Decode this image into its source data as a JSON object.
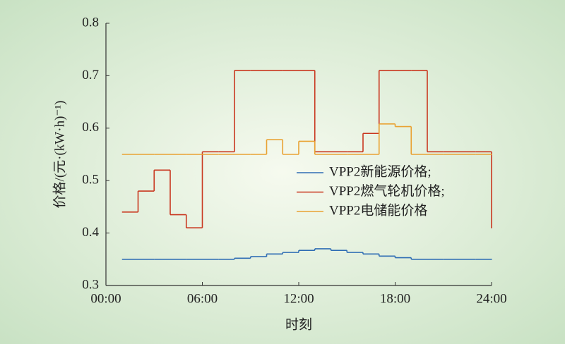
{
  "chart_data": {
    "type": "step-line",
    "x_label": "时刻",
    "y_label": "价格/(元·(kW·h)⁻¹)",
    "x": [
      1,
      2,
      3,
      4,
      5,
      6,
      7,
      8,
      9,
      10,
      11,
      12,
      13,
      14,
      15,
      16,
      17,
      18,
      19,
      20,
      21,
      22,
      23,
      24
    ],
    "series": [
      {
        "name": "VPP2新能源价格;",
        "color": "#2f6db4",
        "values": [
          0.35,
          0.35,
          0.35,
          0.35,
          0.35,
          0.35,
          0.35,
          0.352,
          0.355,
          0.36,
          0.363,
          0.367,
          0.37,
          0.367,
          0.363,
          0.36,
          0.356,
          0.353,
          0.35,
          0.35,
          0.35,
          0.35,
          0.35,
          0.35
        ]
      },
      {
        "name": "VPP2燃气轮机价格;",
        "color": "#c9371f",
        "values": [
          0.44,
          0.48,
          0.52,
          0.435,
          0.41,
          0.555,
          0.555,
          0.71,
          0.71,
          0.71,
          0.71,
          0.71,
          0.555,
          0.555,
          0.555,
          0.59,
          0.71,
          0.71,
          0.71,
          0.555,
          0.555,
          0.555,
          0.555,
          0.41
        ]
      },
      {
        "name": "VPP2电储能价格",
        "color": "#e9a233",
        "values": [
          0.55,
          0.55,
          0.55,
          0.55,
          0.55,
          0.55,
          0.55,
          0.55,
          0.55,
          0.578,
          0.55,
          0.575,
          0.55,
          0.55,
          0.55,
          0.55,
          0.608,
          0.603,
          0.55,
          0.55,
          0.55,
          0.55,
          0.55,
          0.55
        ]
      }
    ],
    "xlim": [
      0,
      24
    ],
    "xticks": [
      {
        "value": 0,
        "label": "00:00"
      },
      {
        "value": 6,
        "label": "06:00"
      },
      {
        "value": 12,
        "label": "12:00"
      },
      {
        "value": 18,
        "label": "18:00"
      },
      {
        "value": 24,
        "label": "24:00"
      }
    ],
    "ylim": [
      0.3,
      0.8
    ],
    "yticks": [
      0.3,
      0.4,
      0.5,
      0.6,
      0.7,
      0.8
    ]
  }
}
